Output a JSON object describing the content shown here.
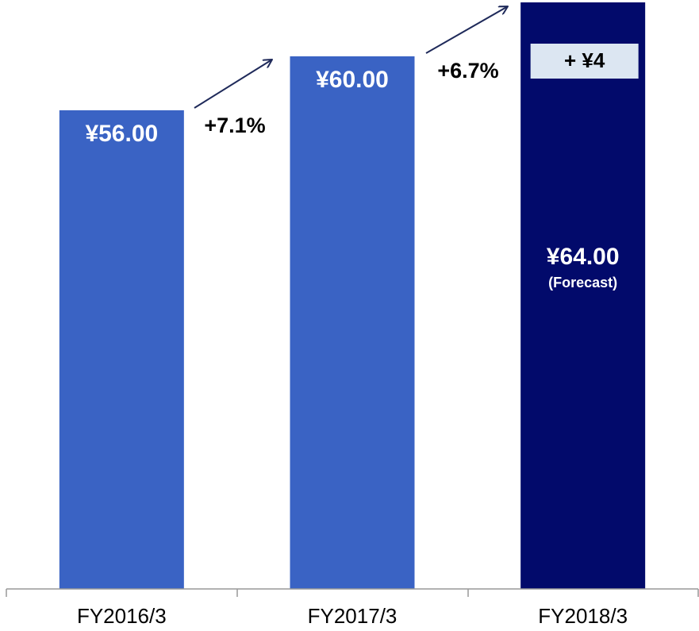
{
  "chart_data": {
    "type": "bar",
    "categories": [
      "FY2016/3",
      "FY2017/3",
      "FY2018/3"
    ],
    "values": [
      56,
      60,
      64
    ],
    "value_labels": [
      "¥56.00",
      "¥60.00",
      "¥64.00"
    ],
    "colors": [
      "#3a63c4",
      "#3a63c4",
      "#020a6b"
    ],
    "ylim": [
      20.5,
      64
    ],
    "annotations": {
      "growth": [
        "+7.1%",
        "+6.7%"
      ],
      "increase": "+ ¥4",
      "forecast": "(Forecast)"
    }
  }
}
